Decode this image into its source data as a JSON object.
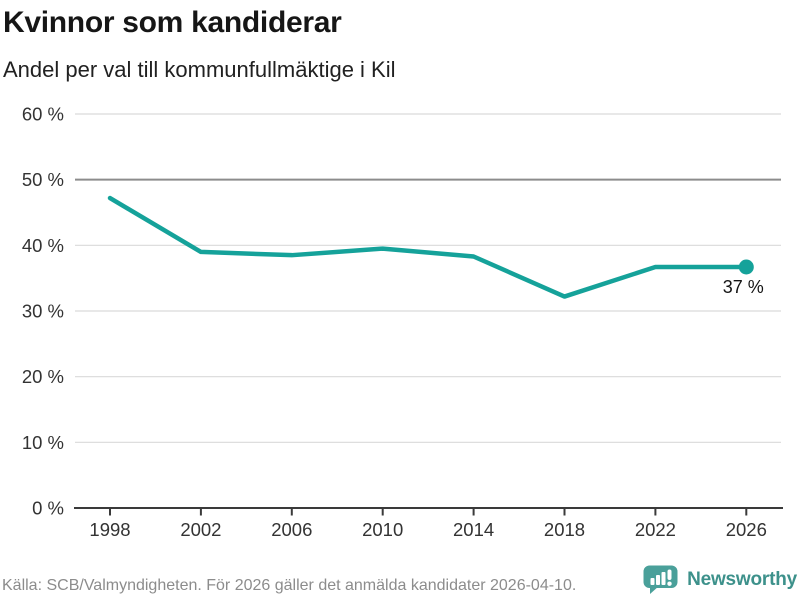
{
  "header": {
    "title": "Kvinnor som kandiderar",
    "subtitle": "Andel per val till kommunfullmäktige i Kil"
  },
  "chart_data": {
    "type": "line",
    "title": "Kvinnor som kandiderar",
    "subtitle": "Andel per val till kommunfullmäktige i Kil",
    "x": [
      1998,
      2002,
      2006,
      2010,
      2014,
      2018,
      2022,
      2026
    ],
    "x_tick_labels": [
      "1998",
      "2002",
      "2006",
      "2010",
      "2014",
      "2018",
      "2022",
      "2026"
    ],
    "series": [
      {
        "values": [
          47.2,
          39.0,
          38.5,
          39.5,
          38.3,
          32.2,
          36.7,
          36.7
        ]
      }
    ],
    "end_point_label": "37 %",
    "ylim": [
      0,
      60
    ],
    "y_tick_values": [
      0,
      10,
      20,
      30,
      40,
      50,
      60
    ],
    "y_tick_labels": [
      "0 %",
      "10 %",
      "20 %",
      "30 %",
      "40 %",
      "50 %",
      "60 %"
    ],
    "emphasized_gridline": 50,
    "grid": "horizontal",
    "legend": "none",
    "xlabel": "",
    "ylabel": ""
  },
  "footer": {
    "source": "Källa: SCB/Valmyndigheten. För 2026 gäller det anmälda kandidater 2026-04-10.",
    "brand": "Newsworthy"
  },
  "colors": {
    "line": "#15a29a",
    "grid_light": "#dadada",
    "grid_emphasis": "#8c8c8c",
    "axis": "#3a3a3a",
    "tick_text": "#333333",
    "point_label": "#141414",
    "logo_bubble": "#4aa09a",
    "wordmark": "#3d918b"
  }
}
